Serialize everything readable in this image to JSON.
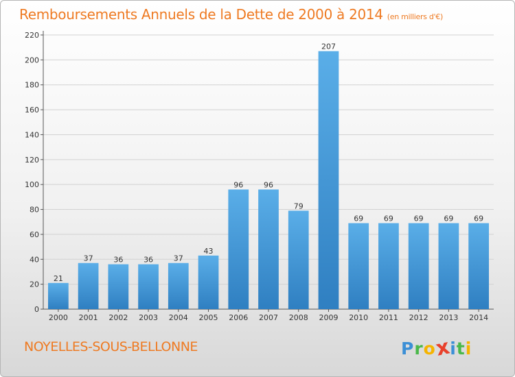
{
  "title": "Remboursements Annuels de la Dette de 2000 à 2014",
  "unit": "(en milliers d'€)",
  "commune": "NOYELLES-SOUS-BELLONNE",
  "logo": {
    "letters": [
      "P",
      "r",
      "o",
      "x",
      "i",
      "t",
      "i"
    ],
    "colors": [
      "#3b8fd6",
      "#4ab84a",
      "#f5b400",
      "#e8412c",
      "#3b8fd6",
      "#4ab84a",
      "#f5b400"
    ]
  },
  "colors": {
    "bar": "#3d8fd3",
    "bar_light": "#5aaee8",
    "title": "#ee7a22"
  },
  "chart_data": {
    "type": "bar",
    "title": "Remboursements Annuels de la Dette de 2000 à 2014",
    "xlabel": "",
    "ylabel": "",
    "ylim": [
      0,
      220
    ],
    "yticks": [
      0,
      20,
      40,
      60,
      80,
      100,
      120,
      140,
      160,
      180,
      200,
      220
    ],
    "grid": true,
    "categories": [
      "2000",
      "2001",
      "2002",
      "2003",
      "2004",
      "2005",
      "2006",
      "2007",
      "2008",
      "2009",
      "2010",
      "2011",
      "2012",
      "2013",
      "2014"
    ],
    "values": [
      21,
      37,
      36,
      36,
      37,
      43,
      96,
      96,
      79,
      207,
      69,
      69,
      69,
      69,
      69
    ]
  }
}
